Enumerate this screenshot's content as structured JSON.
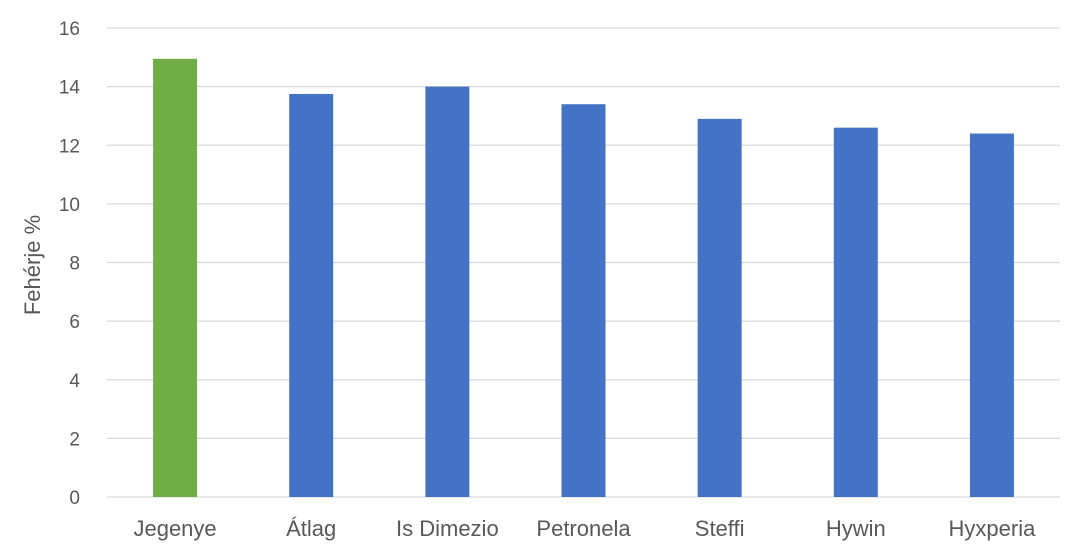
{
  "chart_data": {
    "type": "bar",
    "title": "",
    "xlabel": "",
    "ylabel": "Fehérje %",
    "ylim": [
      0,
      16
    ],
    "yticks": [
      0,
      2,
      4,
      6,
      8,
      10,
      12,
      14,
      16
    ],
    "grid": true,
    "legend": "none",
    "categories": [
      "Jegenye",
      "Átlag",
      "Is Dimezio",
      "Petronela",
      "Steffi",
      "Hywin",
      "Hyxperia"
    ],
    "values": [
      14.95,
      13.75,
      14.0,
      13.4,
      12.9,
      12.6,
      12.4
    ],
    "colors": [
      "#70ad47",
      "#4472c4",
      "#4472c4",
      "#4472c4",
      "#4472c4",
      "#4472c4",
      "#4472c4"
    ]
  }
}
